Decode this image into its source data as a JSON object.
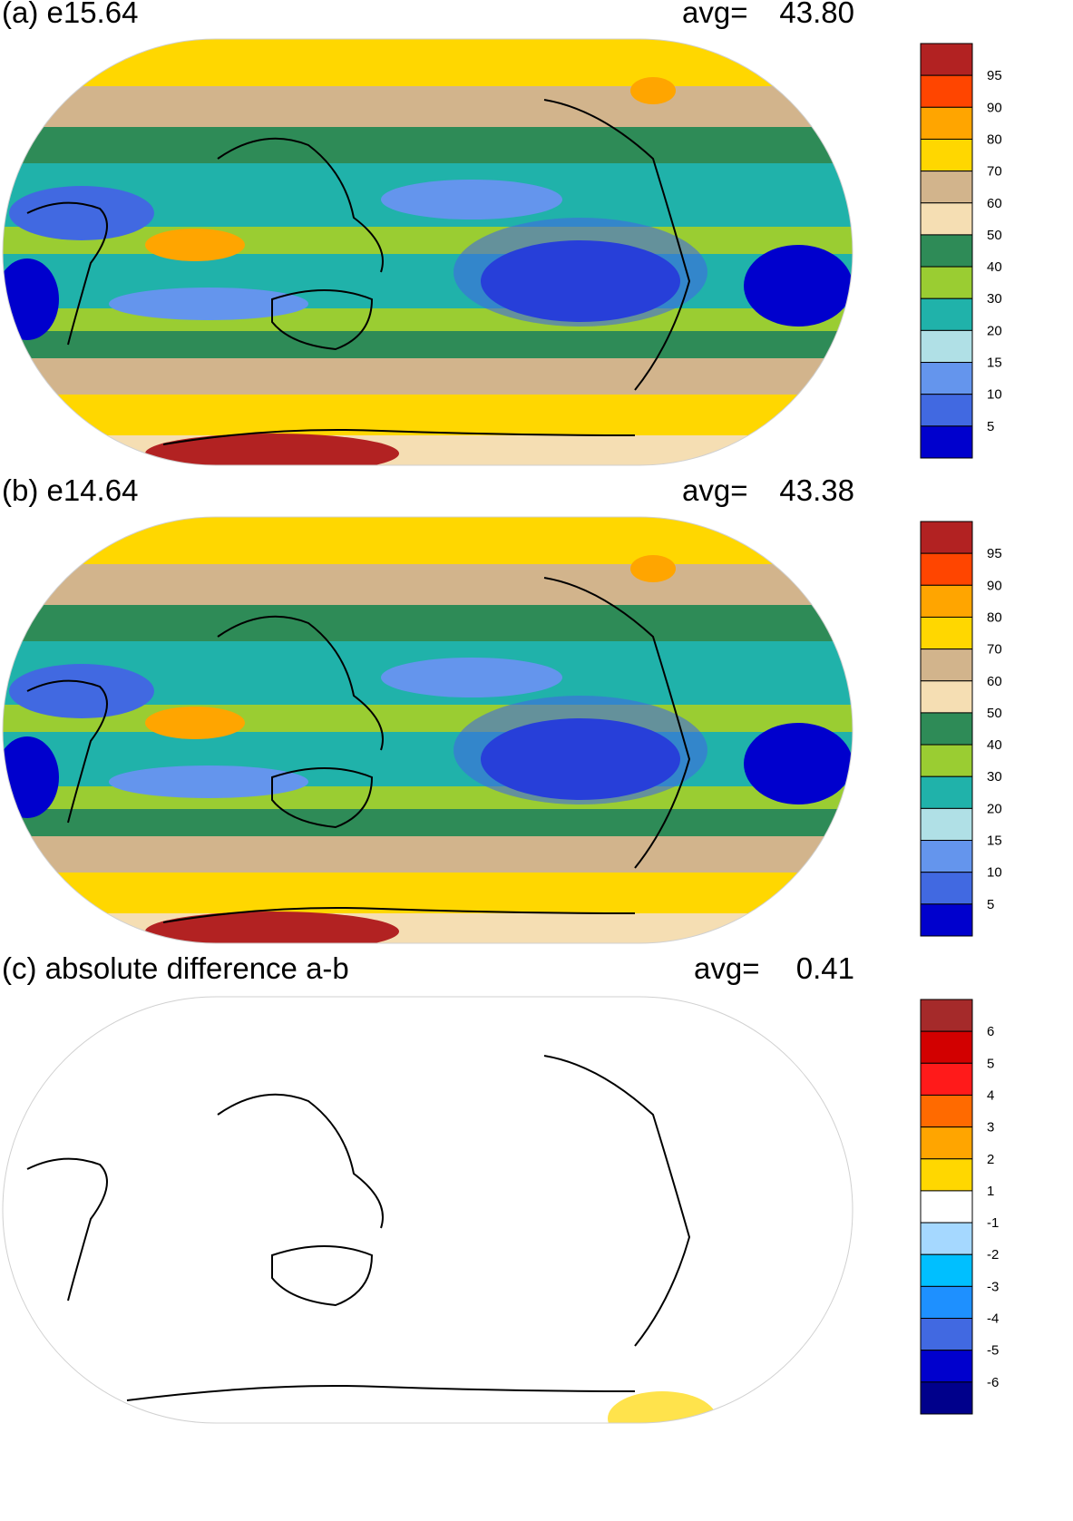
{
  "chart_data": [
    {
      "type": "heatmap",
      "panel_label": "(a) e15.64",
      "avg_label": "avg=",
      "avg_value": "43.80",
      "colorbar": {
        "ticks": [
          "95",
          "90",
          "80",
          "70",
          "60",
          "50",
          "40",
          "30",
          "20",
          "15",
          "10",
          "5"
        ],
        "colors": [
          "#b22222",
          "#ff4500",
          "#ffa500",
          "#ffd700",
          "#d2b48c",
          "#f5deb3",
          "#2e8b57",
          "#9acd32",
          "#20b2aa",
          "#b0e0e6",
          "#6495ed",
          "#4169e1",
          "#0000cd"
        ]
      }
    },
    {
      "type": "heatmap",
      "panel_label": "(b) e14.64",
      "avg_label": "avg=",
      "avg_value": "43.38",
      "colorbar": {
        "ticks": [
          "95",
          "90",
          "80",
          "70",
          "60",
          "50",
          "40",
          "30",
          "20",
          "15",
          "10",
          "5"
        ],
        "colors": [
          "#b22222",
          "#ff4500",
          "#ffa500",
          "#ffd700",
          "#d2b48c",
          "#f5deb3",
          "#2e8b57",
          "#9acd32",
          "#20b2aa",
          "#b0e0e6",
          "#6495ed",
          "#4169e1",
          "#0000cd"
        ]
      }
    },
    {
      "type": "heatmap",
      "panel_label": "(c) absolute difference a-b",
      "avg_label": "avg=",
      "avg_value": "0.41",
      "colorbar": {
        "ticks": [
          "6",
          "5",
          "4",
          "3",
          "2",
          "1",
          "-1",
          "-2",
          "-3",
          "-4",
          "-5",
          "-6"
        ],
        "colors": [
          "#a52a2a",
          "#d20000",
          "#ff1a1a",
          "#ff6a00",
          "#ffa500",
          "#ffd700",
          "#ffffff",
          "#a5d8ff",
          "#00bfff",
          "#1e90ff",
          "#4169e1",
          "#0000cd",
          "#00008b"
        ]
      }
    }
  ]
}
